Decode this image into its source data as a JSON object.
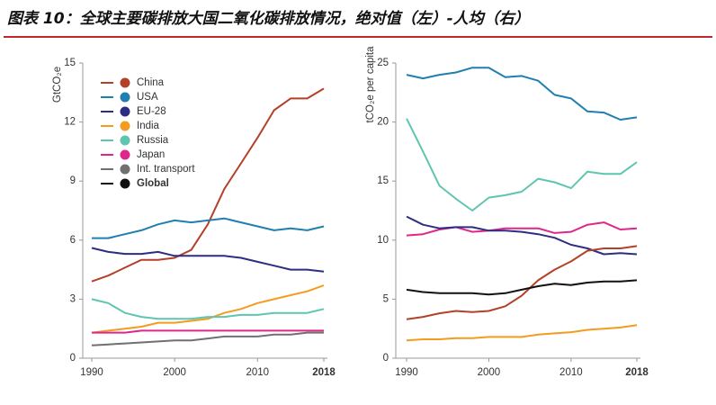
{
  "title": "图表 10：全球主要碳排放大国二氧化碳排放情况，绝对值（左）-人均（右）",
  "chart_data": [
    {
      "type": "line",
      "y_label": "GtCO₂e",
      "x": [
        1990,
        1992,
        1994,
        1996,
        1998,
        2000,
        2002,
        2004,
        2006,
        2008,
        2010,
        2012,
        2014,
        2016,
        2018
      ],
      "xlim": [
        1990,
        2018
      ],
      "xticks": [
        1990,
        2000,
        2010,
        2018
      ],
      "ylim": [
        0,
        15
      ],
      "yticks": [
        0,
        3,
        6,
        9,
        12,
        15
      ],
      "legend": true,
      "legend_position": "upper left",
      "series": [
        {
          "name": "China",
          "color": "#b5402a",
          "values": [
            3.9,
            4.2,
            4.6,
            5.0,
            5.0,
            5.1,
            5.5,
            6.8,
            8.6,
            9.9,
            11.2,
            12.6,
            13.2,
            13.2,
            13.7
          ]
        },
        {
          "name": "USA",
          "color": "#1f7fb0",
          "values": [
            6.1,
            6.1,
            6.3,
            6.5,
            6.8,
            7.0,
            6.9,
            7.0,
            7.1,
            6.9,
            6.7,
            6.5,
            6.6,
            6.5,
            6.7
          ]
        },
        {
          "name": "EU-28",
          "color": "#2d2e83",
          "values": [
            5.6,
            5.4,
            5.3,
            5.3,
            5.4,
            5.2,
            5.2,
            5.2,
            5.2,
            5.1,
            4.9,
            4.7,
            4.5,
            4.5,
            4.4
          ]
        },
        {
          "name": "India",
          "color": "#f39c1f",
          "values": [
            1.3,
            1.4,
            1.5,
            1.6,
            1.8,
            1.8,
            1.9,
            2.0,
            2.3,
            2.5,
            2.8,
            3.0,
            3.2,
            3.4,
            3.7
          ]
        },
        {
          "name": "Russia",
          "color": "#5ec5b0",
          "values": [
            3.0,
            2.8,
            2.3,
            2.1,
            2.0,
            2.0,
            2.0,
            2.1,
            2.1,
            2.2,
            2.2,
            2.3,
            2.3,
            2.3,
            2.5
          ]
        },
        {
          "name": "Japan",
          "color": "#e0268a",
          "values": [
            1.3,
            1.3,
            1.3,
            1.4,
            1.4,
            1.4,
            1.4,
            1.4,
            1.4,
            1.4,
            1.4,
            1.4,
            1.4,
            1.4,
            1.4
          ]
        },
        {
          "name": "Int. transport",
          "color": "#707070",
          "values": [
            0.65,
            0.7,
            0.75,
            0.8,
            0.85,
            0.9,
            0.9,
            1.0,
            1.1,
            1.1,
            1.1,
            1.2,
            1.2,
            1.3,
            1.3
          ]
        },
        {
          "name": "Global",
          "color": "#111111",
          "values": [
            null,
            null,
            null,
            null,
            null,
            null,
            null,
            null,
            null,
            null,
            null,
            null,
            null,
            null,
            null
          ]
        }
      ]
    },
    {
      "type": "line",
      "y_label": "tCO₂e per capita",
      "x": [
        1990,
        1992,
        1994,
        1996,
        1998,
        2000,
        2002,
        2004,
        2006,
        2008,
        2010,
        2012,
        2014,
        2016,
        2018
      ],
      "xlim": [
        1990,
        2018
      ],
      "xticks": [
        1990,
        2000,
        2010,
        2018
      ],
      "ylim": [
        0,
        25
      ],
      "yticks": [
        0,
        5,
        10,
        15,
        20,
        25
      ],
      "legend": false,
      "series": [
        {
          "color": "#1f7fb0",
          "values": [
            24.0,
            23.7,
            24.0,
            24.2,
            24.6,
            24.6,
            23.8,
            23.9,
            23.5,
            22.3,
            22.0,
            20.9,
            20.8,
            20.2,
            20.4
          ]
        },
        {
          "color": "#5ec5b0",
          "values": [
            20.3,
            17.5,
            14.6,
            13.5,
            12.5,
            13.6,
            13.8,
            14.1,
            15.2,
            14.9,
            14.4,
            15.8,
            15.6,
            15.6,
            16.6
          ]
        },
        {
          "color": "#e0268a",
          "values": [
            10.4,
            10.5,
            10.9,
            11.1,
            10.7,
            10.8,
            11.0,
            11.0,
            11.0,
            10.6,
            10.7,
            11.3,
            11.5,
            10.9,
            11.0
          ]
        },
        {
          "color": "#2d2e83",
          "values": [
            12.0,
            11.3,
            11.0,
            11.1,
            11.1,
            10.8,
            10.8,
            10.7,
            10.5,
            10.2,
            9.6,
            9.3,
            8.8,
            8.9,
            8.8
          ]
        },
        {
          "color": "#b5402a",
          "values": [
            3.3,
            3.5,
            3.8,
            4.0,
            3.9,
            4.0,
            4.4,
            5.3,
            6.6,
            7.5,
            8.2,
            9.1,
            9.3,
            9.3,
            9.5
          ]
        },
        {
          "color": "#111111",
          "values": [
            5.8,
            5.6,
            5.5,
            5.5,
            5.5,
            5.4,
            5.5,
            5.8,
            6.1,
            6.3,
            6.2,
            6.4,
            6.5,
            6.5,
            6.6
          ]
        },
        {
          "color": "#f39c1f",
          "values": [
            1.5,
            1.6,
            1.6,
            1.7,
            1.7,
            1.8,
            1.8,
            1.8,
            2.0,
            2.1,
            2.2,
            2.4,
            2.5,
            2.6,
            2.8
          ]
        }
      ]
    }
  ]
}
